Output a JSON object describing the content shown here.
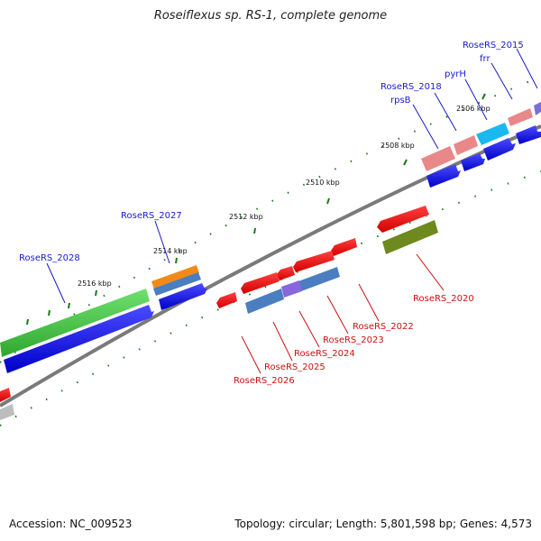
{
  "title": "Roseiflexus sp. RS-1, complete genome",
  "footer": {
    "accession": "Accession: NC_009523",
    "summary": "Topology: circular; Length: 5,801,598 bp; Genes: 4,573"
  },
  "ticks": [
    "2506 kbp",
    "2508 kbp",
    "2510 kbp",
    "2512 kbp",
    "2514 kbp",
    "2516 kbp"
  ],
  "forward_labels": [
    "RoseRS_2015",
    "frr",
    "pyrH",
    "RoseRS_2018",
    "rpsB",
    "RoseRS_2027",
    "RoseRS_2028"
  ],
  "reverse_labels": [
    "RoseRS_2020",
    "RoseRS_2022",
    "RoseRS_2023",
    "RoseRS_2024",
    "RoseRS_2025",
    "RoseRS_2026"
  ],
  "colors": {
    "forward_label": "#1a1acc",
    "reverse_label": "#cc1111",
    "backbone": "#808080",
    "tick": "#1a7a1a",
    "cds_forward": "#0000ee",
    "cds_reverse": "#ee0000"
  }
}
